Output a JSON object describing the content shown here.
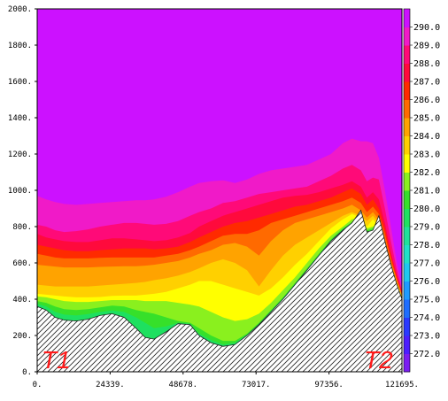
{
  "chart_data": {
    "type": "contour",
    "x_ticks": [
      "0.",
      "24339.",
      "48678.",
      "73017.",
      "97356.",
      "121695."
    ],
    "y_ticks": [
      "0.",
      "200.",
      "400.",
      "600.",
      "800.",
      "1000.",
      "1200.",
      "1400.",
      "1600.",
      "1800.",
      "2000."
    ],
    "xlim": [
      0,
      121695
    ],
    "ylim": [
      0,
      2000
    ],
    "colorbar": {
      "levels": [
        "272.0",
        "273.0",
        "274.0",
        "275.0",
        "276.0",
        "277.0",
        "278.0",
        "279.0",
        "280.0",
        "281.0",
        "282.0",
        "283.0",
        "284.0",
        "285.0",
        "286.0",
        "287.0",
        "288.0",
        "289.0",
        "290.0"
      ],
      "colors": [
        "#7b1cf2",
        "#4c1dff",
        "#2a39ff",
        "#1e6dff",
        "#1d9bff",
        "#1ec8f0",
        "#1ee0c8",
        "#1ee09a",
        "#1ee060",
        "#36e02a",
        "#8af01e",
        "#ffff00",
        "#ffd000",
        "#ffa300",
        "#ff6a00",
        "#ff2a00",
        "#ff0a3c",
        "#ff0a78",
        "#f01ac8",
        "#cc11ff"
      ]
    },
    "layer_colors": [
      "#cc11ff",
      "#f01ac8",
      "#ff0a78",
      "#ff0a3c",
      "#ff2a00",
      "#ff6a00",
      "#ffa300",
      "#ffd000",
      "#ffff00",
      "#8af01e",
      "#36e02a",
      "#1ee060"
    ],
    "x": [
      0,
      3000,
      6000,
      9000,
      13000,
      17000,
      21000,
      25000,
      29000,
      33000,
      36000,
      39000,
      43000,
      47000,
      51000,
      54000,
      58000,
      62000,
      66000,
      70000,
      74000,
      78000,
      82000,
      86000,
      90000,
      94000,
      98000,
      102000,
      105000,
      108000,
      110000,
      112000,
      114000,
      116000,
      118000,
      120000,
      121695
    ],
    "terrain": [
      360,
      340,
      300,
      285,
      280,
      290,
      310,
      320,
      300,
      240,
      190,
      180,
      220,
      265,
      260,
      200,
      160,
      140,
      150,
      200,
      260,
      330,
      400,
      480,
      560,
      640,
      720,
      780,
      820,
      890,
      770,
      780,
      860,
      720,
      590,
      480,
      400
    ],
    "contours": [
      {
        "level": "290.0",
        "y": [
          970,
          950,
          935,
          925,
          920,
          925,
          930,
          935,
          940,
          945,
          945,
          950,
          965,
          990,
          1020,
          1040,
          1050,
          1055,
          1040,
          1060,
          1090,
          1110,
          1120,
          1130,
          1140,
          1170,
          1200,
          1260,
          1285,
          1270,
          1270,
          1260,
          1180,
          1000,
          800,
          600,
          460
        ]
      },
      {
        "level": "289.0",
        "y": [
          810,
          800,
          780,
          770,
          775,
          785,
          800,
          810,
          820,
          820,
          815,
          810,
          815,
          830,
          860,
          880,
          900,
          930,
          940,
          960,
          980,
          990,
          1000,
          1010,
          1020,
          1050,
          1080,
          1120,
          1140,
          1110,
          1050,
          1070,
          1060,
          900,
          720,
          560,
          450
        ]
      },
      {
        "level": "288.0",
        "y": [
          760,
          740,
          730,
          720,
          715,
          715,
          725,
          735,
          735,
          730,
          725,
          720,
          725,
          740,
          765,
          800,
          830,
          860,
          880,
          900,
          920,
          940,
          960,
          970,
          975,
          990,
          1010,
          1030,
          1050,
          1020,
          960,
          990,
          950,
          820,
          660,
          530,
          440
        ]
      },
      {
        "level": "287.0",
        "y": [
          700,
          690,
          680,
          670,
          665,
          665,
          670,
          675,
          680,
          680,
          680,
          675,
          680,
          690,
          715,
          740,
          770,
          800,
          820,
          830,
          850,
          870,
          890,
          910,
          920,
          940,
          960,
          990,
          1010,
          980,
          920,
          950,
          900,
          790,
          640,
          520,
          430
        ]
      },
      {
        "level": "286.0",
        "y": [
          650,
          640,
          630,
          625,
          625,
          625,
          628,
          630,
          630,
          630,
          630,
          630,
          640,
          650,
          670,
          690,
          720,
          750,
          760,
          760,
          780,
          820,
          840,
          860,
          880,
          900,
          920,
          940,
          960,
          930,
          880,
          910,
          870,
          760,
          620,
          510,
          425
        ]
      },
      {
        "level": "285.0",
        "y": [
          590,
          585,
          580,
          575,
          575,
          575,
          578,
          580,
          582,
          582,
          585,
          590,
          600,
          610,
          630,
          650,
          670,
          700,
          710,
          690,
          640,
          720,
          780,
          820,
          840,
          860,
          880,
          900,
          920,
          890,
          850,
          880,
          840,
          730,
          600,
          500,
          420
        ]
      },
      {
        "level": "284.0",
        "y": [
          480,
          475,
          470,
          470,
          470,
          470,
          475,
          480,
          485,
          490,
          495,
          505,
          515,
          530,
          550,
          570,
          600,
          620,
          600,
          560,
          470,
          560,
          640,
          700,
          740,
          780,
          820,
          860,
          880,
          860,
          830,
          860,
          820,
          710,
          590,
          490,
          415
        ]
      },
      {
        "level": "283.0",
        "y": [
          430,
          425,
          420,
          415,
          410,
          410,
          412,
          418,
          420,
          420,
          425,
          430,
          440,
          460,
          480,
          500,
          500,
          480,
          460,
          440,
          420,
          460,
          520,
          590,
          650,
          720,
          790,
          840,
          870,
          850,
          800,
          840,
          800,
          700,
          580,
          485,
          410
        ]
      },
      {
        "level": "282.0",
        "y": [
          415,
          410,
          400,
          390,
          385,
          385,
          390,
          395,
          395,
          395,
          390,
          390,
          390,
          380,
          370,
          360,
          330,
          300,
          280,
          290,
          320,
          380,
          450,
          520,
          600,
          680,
          750,
          800,
          840,
          850,
          790,
          800,
          820,
          700,
          580,
          480,
          405
        ]
      },
      {
        "level": "281.0",
        "y": [
          390,
          380,
          360,
          345,
          340,
          345,
          355,
          365,
          360,
          340,
          330,
          320,
          300,
          280,
          270,
          240,
          200,
          170,
          170,
          210,
          270,
          340,
          410,
          490,
          570,
          650,
          730,
          790,
          825,
          880,
          780,
          790,
          840,
          710,
          585,
          480,
          402
        ]
      },
      {
        "level": "280.0",
        "y": [
          375,
          360,
          330,
          315,
          310,
          318,
          330,
          338,
          330,
          300,
          270,
          240,
          250,
          270,
          265,
          210,
          175,
          150,
          160,
          205,
          265,
          335,
          405,
          485,
          565,
          645,
          725,
          785,
          822,
          888,
          772,
          782,
          858,
          718,
          588,
          480,
          401
        ]
      },
      {
        "level": "279.0",
        "y": [
          365,
          348,
          310,
          295,
          290,
          300,
          318,
          328,
          312,
          260,
          215,
          200,
          232,
          268,
          262,
          204,
          165,
          144,
          154,
          202,
          262,
          332,
          402,
          482,
          562,
          642,
          722,
          782,
          821,
          889,
          771,
          781,
          859,
          719,
          589,
          480,
          400
        ]
      }
    ],
    "end_labels": [
      "T1",
      "T2"
    ]
  }
}
